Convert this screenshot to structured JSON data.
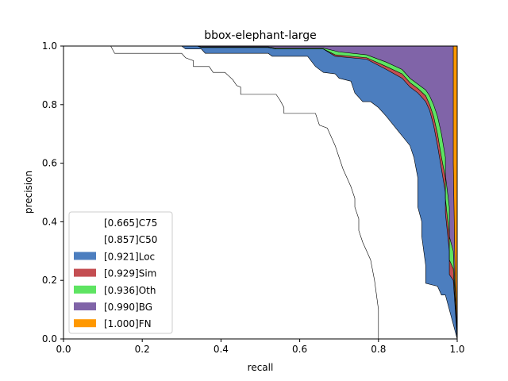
{
  "chart_data": {
    "type": "area",
    "title": "bbox-elephant-large",
    "xlabel": "recall",
    "ylabel": "precision",
    "xlim": [
      0,
      1
    ],
    "ylim": [
      0,
      1
    ],
    "xticks": [
      "0.0",
      "0.2",
      "0.4",
      "0.6",
      "0.8",
      "1.0"
    ],
    "yticks": [
      "0.0",
      "0.2",
      "0.4",
      "0.6",
      "0.8",
      "1.0"
    ],
    "grid": false,
    "legend_position": "lower-left",
    "series": [
      {
        "name": "[0.665]C75",
        "color": "#ffffff",
        "points": [
          [
            0,
            1
          ],
          [
            0.12,
            1
          ],
          [
            0.13,
            0.975
          ],
          [
            0.3,
            0.975
          ],
          [
            0.31,
            0.96
          ],
          [
            0.33,
            0.95
          ],
          [
            0.33,
            0.93
          ],
          [
            0.37,
            0.93
          ],
          [
            0.38,
            0.91
          ],
          [
            0.41,
            0.91
          ],
          [
            0.43,
            0.885
          ],
          [
            0.44,
            0.865
          ],
          [
            0.45,
            0.86
          ],
          [
            0.45,
            0.835
          ],
          [
            0.54,
            0.835
          ],
          [
            0.55,
            0.815
          ],
          [
            0.56,
            0.79
          ],
          [
            0.56,
            0.77
          ],
          [
            0.64,
            0.77
          ],
          [
            0.65,
            0.73
          ],
          [
            0.67,
            0.72
          ],
          [
            0.68,
            0.69
          ],
          [
            0.69,
            0.66
          ],
          [
            0.7,
            0.62
          ],
          [
            0.71,
            0.58
          ],
          [
            0.72,
            0.55
          ],
          [
            0.73,
            0.52
          ],
          [
            0.74,
            0.48
          ],
          [
            0.74,
            0.45
          ],
          [
            0.75,
            0.41
          ],
          [
            0.75,
            0.37
          ],
          [
            0.76,
            0.33
          ],
          [
            0.77,
            0.3
          ],
          [
            0.78,
            0.27
          ],
          [
            0.79,
            0.2
          ],
          [
            0.8,
            0.1
          ],
          [
            0.8,
            0
          ]
        ]
      },
      {
        "name": "[0.857]C50",
        "color": "#ffffff",
        "points": [
          [
            0,
            1
          ],
          [
            0.3,
            1
          ],
          [
            0.31,
            0.99
          ],
          [
            0.35,
            0.99
          ],
          [
            0.36,
            0.975
          ],
          [
            0.52,
            0.975
          ],
          [
            0.53,
            0.965
          ],
          [
            0.62,
            0.965
          ],
          [
            0.64,
            0.93
          ],
          [
            0.66,
            0.91
          ],
          [
            0.69,
            0.905
          ],
          [
            0.7,
            0.89
          ],
          [
            0.73,
            0.88
          ],
          [
            0.74,
            0.84
          ],
          [
            0.76,
            0.81
          ],
          [
            0.78,
            0.81
          ],
          [
            0.8,
            0.79
          ],
          [
            0.82,
            0.76
          ],
          [
            0.85,
            0.71
          ],
          [
            0.88,
            0.66
          ],
          [
            0.89,
            0.62
          ],
          [
            0.9,
            0.55
          ],
          [
            0.9,
            0.45
          ],
          [
            0.91,
            0.4
          ],
          [
            0.91,
            0.35
          ],
          [
            0.92,
            0.25
          ],
          [
            0.92,
            0.19
          ],
          [
            0.95,
            0.18
          ],
          [
            0.96,
            0.15
          ],
          [
            0.97,
            0.15
          ],
          [
            0.98,
            0.1
          ],
          [
            1.0,
            0
          ]
        ]
      },
      {
        "name": "[0.921]Loc",
        "color": "#4c7ebf",
        "points": [
          [
            0,
            1
          ],
          [
            0.34,
            1
          ],
          [
            0.35,
            0.995
          ],
          [
            0.52,
            0.995
          ],
          [
            0.54,
            0.99
          ],
          [
            0.66,
            0.99
          ],
          [
            0.69,
            0.965
          ],
          [
            0.77,
            0.955
          ],
          [
            0.82,
            0.92
          ],
          [
            0.86,
            0.89
          ],
          [
            0.88,
            0.86
          ],
          [
            0.9,
            0.84
          ],
          [
            0.92,
            0.81
          ],
          [
            0.93,
            0.78
          ],
          [
            0.94,
            0.73
          ],
          [
            0.95,
            0.66
          ],
          [
            0.96,
            0.58
          ],
          [
            0.97,
            0.5
          ],
          [
            0.97,
            0.43
          ],
          [
            0.98,
            0.3
          ],
          [
            0.98,
            0.22
          ],
          [
            0.99,
            0.2
          ],
          [
            1.0,
            0
          ]
        ]
      },
      {
        "name": "[0.929]Sim",
        "color": "#c44e52",
        "points": [
          [
            0,
            1
          ],
          [
            0.34,
            1
          ],
          [
            0.35,
            0.995
          ],
          [
            0.52,
            0.995
          ],
          [
            0.54,
            0.99
          ],
          [
            0.66,
            0.99
          ],
          [
            0.69,
            0.97
          ],
          [
            0.77,
            0.96
          ],
          [
            0.82,
            0.93
          ],
          [
            0.86,
            0.905
          ],
          [
            0.88,
            0.875
          ],
          [
            0.9,
            0.855
          ],
          [
            0.92,
            0.83
          ],
          [
            0.93,
            0.8
          ],
          [
            0.94,
            0.76
          ],
          [
            0.95,
            0.7
          ],
          [
            0.96,
            0.62
          ],
          [
            0.97,
            0.55
          ],
          [
            0.97,
            0.48
          ],
          [
            0.98,
            0.35
          ],
          [
            0.98,
            0.27
          ],
          [
            0.99,
            0.24
          ],
          [
            1.0,
            0
          ]
        ]
      },
      {
        "name": "[0.936]Oth",
        "color": "#5ee462",
        "points": [
          [
            0,
            1
          ],
          [
            0.34,
            1
          ],
          [
            0.35,
            0.997
          ],
          [
            0.52,
            0.997
          ],
          [
            0.54,
            0.993
          ],
          [
            0.66,
            0.993
          ],
          [
            0.7,
            0.98
          ],
          [
            0.77,
            0.97
          ],
          [
            0.82,
            0.945
          ],
          [
            0.86,
            0.92
          ],
          [
            0.88,
            0.89
          ],
          [
            0.9,
            0.87
          ],
          [
            0.92,
            0.85
          ],
          [
            0.93,
            0.83
          ],
          [
            0.94,
            0.8
          ],
          [
            0.95,
            0.76
          ],
          [
            0.96,
            0.7
          ],
          [
            0.97,
            0.62
          ],
          [
            0.97,
            0.56
          ],
          [
            0.98,
            0.45
          ],
          [
            0.98,
            0.35
          ],
          [
            0.99,
            0.3
          ],
          [
            1.0,
            0
          ]
        ]
      },
      {
        "name": "[0.990]BG",
        "color": "#8064a8",
        "points": [
          [
            0,
            1
          ],
          [
            0.99,
            1
          ],
          [
            0.99,
            0.6
          ],
          [
            0.995,
            0.2
          ],
          [
            1.0,
            0
          ]
        ]
      },
      {
        "name": "[1.000]FN",
        "color": "#ff9800",
        "points": [
          [
            0,
            1
          ],
          [
            1.0,
            1
          ],
          [
            1.0,
            0
          ]
        ]
      }
    ]
  }
}
